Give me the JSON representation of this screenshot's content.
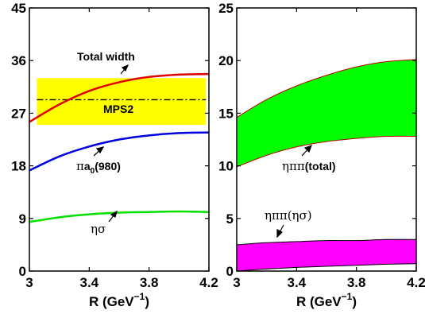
{
  "chart_data": [
    {
      "type": "line",
      "xlabel": "R (GeV",
      "xlabel_sup": "−1",
      "xlabel_end": ")",
      "xlim": [
        3,
        4.2
      ],
      "ylim": [
        0,
        45
      ],
      "xticks": [
        "3",
        "3.4",
        "3.8",
        "4.2"
      ],
      "yticks": [
        "0",
        "9",
        "18",
        "27",
        "36",
        "45"
      ],
      "x": [
        3.0,
        3.2,
        3.4,
        3.6,
        3.8,
        4.0,
        4.2
      ],
      "series": [
        {
          "name": "Total width",
          "color": "#e00000",
          "values": [
            25.5,
            28.5,
            30.8,
            32.3,
            33.2,
            33.6,
            33.7
          ]
        },
        {
          "name": "πa0(980)",
          "color": "#0000e0",
          "values": [
            17.2,
            19.6,
            21.3,
            22.5,
            23.2,
            23.6,
            23.7
          ]
        },
        {
          "name": "ησ",
          "color": "#00e000",
          "values": [
            8.4,
            9.2,
            9.7,
            10.0,
            10.1,
            10.2,
            10.1
          ]
        }
      ],
      "band": {
        "name": "MPS2",
        "color": "#ffff00",
        "x": [
          3.05,
          4.18
        ],
        "y": [
          25,
          33
        ]
      },
      "reference_line": {
        "name": "MPS2",
        "y": 29.3,
        "style": "dash-dot"
      },
      "annotations": {
        "total_width": "Total width",
        "mps2": "MPS2",
        "pia0_prefix": "π",
        "pia0_a": "a",
        "pia0_sub": "0",
        "pia0_suffix": "(980)",
        "etasigma": "ησ"
      }
    },
    {
      "type": "area",
      "xlabel": "R (GeV",
      "xlabel_sup": "−1",
      "xlabel_end": ")",
      "xlim": [
        3,
        4.2
      ],
      "ylim": [
        0,
        25
      ],
      "xticks": [
        "3",
        "3.4",
        "3.8",
        "4.2"
      ],
      "yticks": [
        "0",
        "5",
        "10",
        "15",
        "20",
        "25"
      ],
      "x": [
        3.0,
        3.2,
        3.4,
        3.6,
        3.8,
        4.0,
        4.2
      ],
      "bands": [
        {
          "name": "ηππ(total)",
          "color": "#00ff00",
          "edge": "#c00000",
          "upper": [
            14.6,
            16.3,
            17.6,
            18.6,
            19.4,
            19.9,
            20.1
          ],
          "lower": [
            9.9,
            11.0,
            11.8,
            12.3,
            12.6,
            12.8,
            12.8
          ]
        },
        {
          "name": "ηππ(ησ)",
          "color": "#ff00ff",
          "edge": "#000000",
          "upper": [
            2.5,
            2.7,
            2.8,
            2.9,
            2.9,
            3.0,
            3.0
          ],
          "lower": [
            0.0,
            0.2,
            0.35,
            0.45,
            0.55,
            0.65,
            0.7
          ]
        }
      ],
      "annotations": {
        "etapipi_total_sym": "ηππ",
        "etapipi_total_txt": "(total)",
        "etapipi_etasigma": "ηππ(ησ)"
      }
    }
  ]
}
